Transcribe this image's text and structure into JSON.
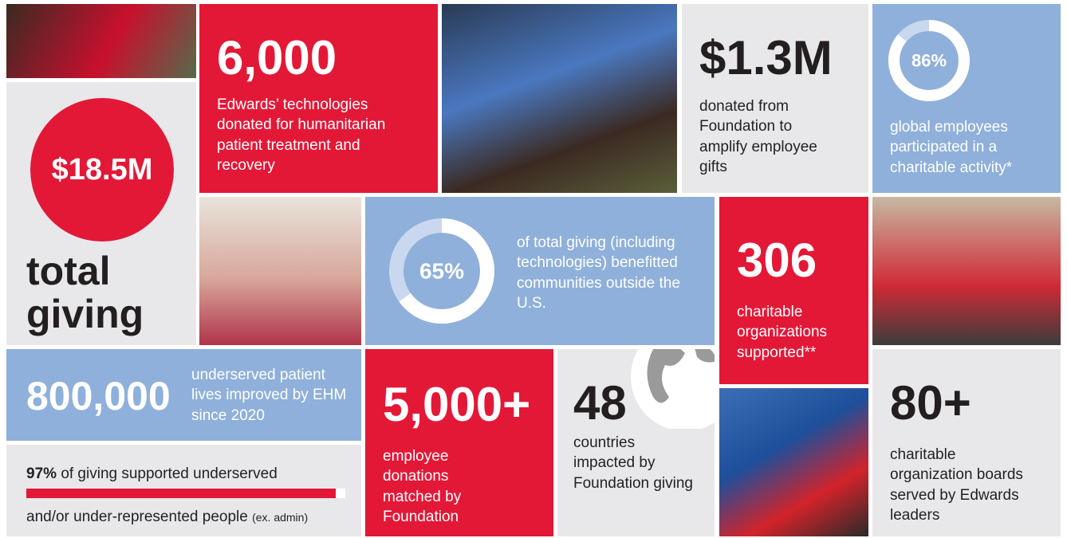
{
  "total_giving": {
    "amount": "$18.5M",
    "label": "total giving"
  },
  "technologies": {
    "number": "6,000",
    "text": "Edwards’ technologies donated for humanitarian patient treatment and recovery"
  },
  "foundation_amplify": {
    "number": "$1.3M",
    "text": "donated from Foundation to amplify employee gifts"
  },
  "employees_participated": {
    "value": 86,
    "label": "86%",
    "text": "global employees participated in a charitable activity*"
  },
  "outside_us": {
    "value": 65,
    "label": "65%",
    "text": "of total giving (including technologies) benefitted communities outside the U.S."
  },
  "organizations": {
    "number": "306",
    "text": "charitable organizations supported**"
  },
  "patient_lives": {
    "number": "800,000",
    "text": "underserved patient lives improved by EHM since 2020"
  },
  "underserved": {
    "value": 97,
    "label": "97%",
    "text_line1": "of giving supported underserved",
    "text_line2": "and/or under-represented people",
    "note": "(ex. admin)"
  },
  "employee_donations": {
    "number": "5,000+",
    "text": "employee donations matched by Foundation"
  },
  "countries": {
    "number": "48",
    "text": "countries impacted by Foundation giving"
  },
  "boards": {
    "number": "80+",
    "text": "charitable organization boards served by Edwards leaders"
  }
}
